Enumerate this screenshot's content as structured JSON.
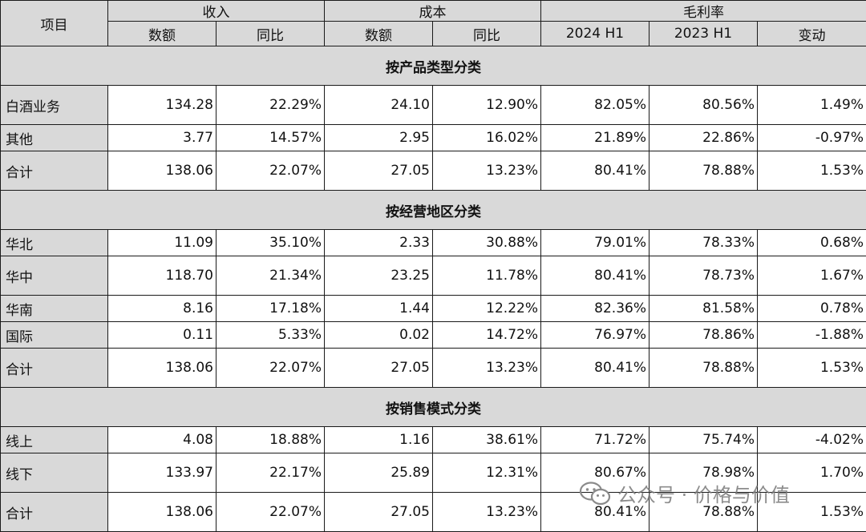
{
  "header": {
    "item": "项目",
    "revenue": "收入",
    "cost": "成本",
    "margin": "毛利率",
    "sub": [
      "数额",
      "同比",
      "数额",
      "同比",
      "2024 H1",
      "2023 H1",
      "变动"
    ]
  },
  "sections": [
    {
      "title": "按产品类型分类",
      "rows": [
        [
          "白酒业务",
          "134.28",
          "22.29%",
          "24.10",
          "12.90%",
          "82.05%",
          "80.56%",
          "1.49%"
        ],
        [
          "其他",
          "3.77",
          "14.57%",
          "2.95",
          "16.02%",
          "21.89%",
          "22.86%",
          "-0.97%"
        ],
        [
          "合计",
          "138.06",
          "22.07%",
          "27.05",
          "13.23%",
          "80.41%",
          "78.88%",
          "1.53%"
        ]
      ]
    },
    {
      "title": "按经营地区分类",
      "rows": [
        [
          "华北",
          "11.09",
          "35.10%",
          "2.33",
          "30.88%",
          "79.01%",
          "78.33%",
          "0.68%"
        ],
        [
          "华中",
          "118.70",
          "21.34%",
          "23.25",
          "11.78%",
          "80.41%",
          "78.73%",
          "1.67%"
        ],
        [
          "华南",
          "8.16",
          "17.18%",
          "1.44",
          "12.22%",
          "82.36%",
          "81.58%",
          "0.78%"
        ],
        [
          "国际",
          "0.11",
          "5.33%",
          "0.02",
          "14.72%",
          "76.97%",
          "78.86%",
          "-1.88%"
        ],
        [
          "合计",
          "138.06",
          "22.07%",
          "27.05",
          "13.23%",
          "80.41%",
          "78.88%",
          "1.53%"
        ]
      ]
    },
    {
      "title": "按销售模式分类",
      "rows": [
        [
          "线上",
          "4.08",
          "18.88%",
          "1.16",
          "38.61%",
          "71.72%",
          "75.74%",
          "-4.02%"
        ],
        [
          "线下",
          "133.97",
          "22.17%",
          "25.89",
          "12.31%",
          "80.67%",
          "78.98%",
          "1.70%"
        ],
        [
          "合计",
          "138.06",
          "22.07%",
          "27.05",
          "13.23%",
          "80.41%",
          "78.88%",
          "1.53%"
        ]
      ]
    }
  ],
  "watermark": {
    "text": "公众号 · 价格与价值",
    "icon": "wechat-icon"
  }
}
